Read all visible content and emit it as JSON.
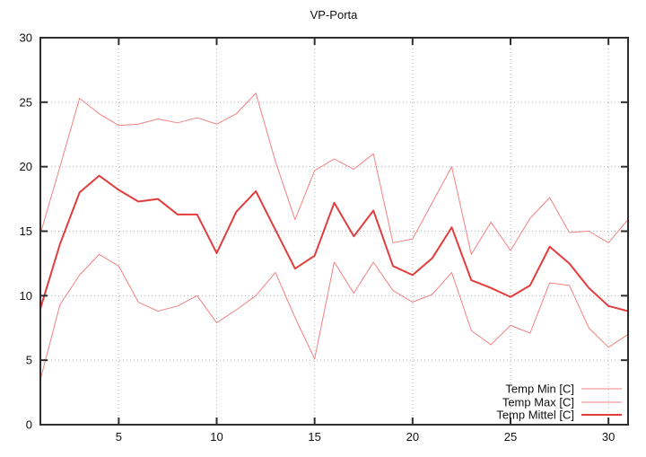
{
  "chart_data": {
    "type": "line",
    "title": "VP-Porta",
    "xlabel": "",
    "ylabel": "",
    "xlim": [
      1,
      31
    ],
    "ylim": [
      0,
      30
    ],
    "x_ticks": [
      5,
      10,
      15,
      20,
      25,
      30
    ],
    "y_ticks": [
      0,
      5,
      10,
      15,
      20,
      25,
      30
    ],
    "grid": "dotted",
    "legend_position": "bottom-right-inside",
    "x": [
      1,
      2,
      3,
      4,
      5,
      6,
      7,
      8,
      9,
      10,
      11,
      12,
      13,
      14,
      15,
      16,
      17,
      18,
      19,
      20,
      21,
      22,
      23,
      24,
      25,
      26,
      27,
      28,
      29,
      30,
      31
    ],
    "series": [
      {
        "name": "Temp Min [C]",
        "color": "#f28181",
        "line_width": 1,
        "values": [
          3.5,
          9.3,
          11.6,
          13.2,
          12.3,
          9.5,
          8.8,
          9.2,
          10.0,
          7.9,
          8.9,
          10.0,
          11.8,
          8.3,
          5.1,
          12.6,
          10.2,
          12.6,
          10.4,
          9.5,
          10.1,
          11.8,
          7.3,
          6.2,
          7.7,
          7.1,
          11.0,
          10.8,
          7.5,
          6.0,
          7.0
        ]
      },
      {
        "name": "Temp Max [C]",
        "color": "#f28181",
        "line_width": 1,
        "values": [
          14.8,
          20.0,
          25.3,
          24.1,
          23.2,
          23.3,
          23.7,
          23.4,
          23.8,
          23.3,
          24.1,
          25.7,
          20.4,
          15.9,
          19.7,
          20.6,
          19.8,
          21.0,
          14.1,
          14.4,
          17.2,
          20.0,
          13.2,
          15.7,
          13.5,
          16.0,
          17.6,
          14.9,
          15.0,
          14.1,
          15.9
        ]
      },
      {
        "name": "Temp Mittel [C]",
        "color": "#e23d3d",
        "line_width": 2,
        "values": [
          9.0,
          14.0,
          18.0,
          19.3,
          18.2,
          17.3,
          17.5,
          16.3,
          16.3,
          13.3,
          16.5,
          18.1,
          15.1,
          12.1,
          13.1,
          17.2,
          14.6,
          16.6,
          12.3,
          11.6,
          12.9,
          15.3,
          11.2,
          10.6,
          9.9,
          10.8,
          13.8,
          12.5,
          10.6,
          9.2,
          8.8
        ]
      }
    ]
  },
  "colors": {
    "background": "#ffffff",
    "plot_border": "#2e2e2e",
    "gridline": "#b3b3b3",
    "text": "#111111",
    "series_light_red": "#f28181",
    "series_red": "#e23d3d"
  }
}
